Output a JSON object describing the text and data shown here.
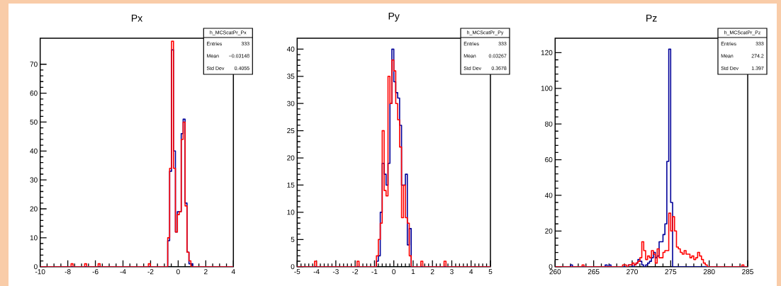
{
  "chart_data": [
    {
      "type": "histogram",
      "title": "Px",
      "xlim": [
        -10,
        4
      ],
      "ylim": [
        0,
        79
      ],
      "xticks": [
        -10,
        -8,
        -6,
        -4,
        -2,
        0,
        2,
        4
      ],
      "yticks": [
        0,
        10,
        20,
        30,
        40,
        50,
        60,
        70
      ],
      "bins": [
        -10,
        -7.76,
        -7.62,
        -6.78,
        -6.64,
        -5.8,
        -5.66,
        -2.16,
        -2.02,
        -0.76,
        -0.62,
        -0.48,
        -0.34,
        -0.2,
        -0.06,
        0.08,
        0.22,
        0.36,
        0.5,
        0.64,
        0.78,
        0.92,
        1.06,
        4
      ],
      "series": [
        {
          "color": "#000099",
          "values": [
            0,
            0,
            0,
            0,
            0,
            0,
            0,
            0,
            0,
            9,
            33,
            75,
            40,
            12,
            19,
            19,
            46,
            51,
            22,
            5,
            1,
            1,
            0
          ]
        },
        {
          "color": "#ff0000",
          "values": [
            0,
            1,
            0,
            1,
            0,
            1,
            0,
            1,
            0,
            10,
            34,
            78,
            34,
            12,
            18,
            19,
            44,
            50,
            21,
            5,
            2,
            0,
            0
          ]
        }
      ],
      "annotations": [
        "h_MCScatPr_Px",
        "Entries",
        "333",
        "Mean",
        "−0.03148",
        "Std Dev",
        "0.4055"
      ]
    },
    {
      "type": "histogram",
      "title": "Py",
      "xlim": [
        -5,
        5
      ],
      "ylim": [
        0,
        42
      ],
      "xticks": [
        -5,
        -4,
        -3,
        -2,
        -1,
        0,
        1,
        2,
        3,
        4,
        5
      ],
      "yticks": [
        0,
        5,
        10,
        15,
        20,
        25,
        30,
        35,
        40
      ],
      "bins": [
        -5,
        -4.1,
        -4,
        -1.9,
        -1.8,
        -0.9,
        -0.8,
        -0.7,
        -0.6,
        -0.5,
        -0.4,
        -0.3,
        -0.2,
        -0.1,
        0,
        0.1,
        0.2,
        0.3,
        0.4,
        0.5,
        0.6,
        0.7,
        0.8,
        0.9,
        1.4,
        1.5,
        2.6,
        2.7,
        5
      ],
      "series": [
        {
          "color": "#000099",
          "values": [
            0,
            0,
            0,
            0,
            0,
            1,
            2,
            10,
            19,
            17,
            15,
            19,
            30,
            40,
            34,
            32,
            31,
            26,
            15,
            15,
            17,
            4,
            7,
            0,
            0,
            0,
            0,
            0
          ]
        },
        {
          "color": "#ff0000",
          "values": [
            0,
            1,
            0,
            1,
            0,
            2,
            5,
            8,
            25,
            14,
            13,
            35,
            30,
            38,
            36,
            30,
            27,
            22,
            9,
            15,
            9,
            8,
            2,
            0,
            1,
            0,
            1,
            0
          ]
        }
      ],
      "annotations": [
        "h_MCScatPr_Py",
        "Entries",
        "333",
        "Mean",
        "0.03267",
        "Std Dev",
        "0.3678"
      ]
    },
    {
      "type": "histogram",
      "title": "Pz",
      "xlim": [
        260,
        285
      ],
      "ylim": [
        0,
        128.1
      ],
      "xticks": [
        260,
        265,
        270,
        275,
        280,
        285
      ],
      "yticks": [
        0,
        20,
        40,
        60,
        80,
        100,
        120
      ],
      "bins": [
        260,
        262,
        262.25,
        263.5,
        263.75,
        266.5,
        266.75,
        267,
        267.25,
        268.75,
        269,
        269.25,
        269.5,
        269.75,
        270,
        270.25,
        270.5,
        270.75,
        271,
        271.25,
        271.5,
        271.75,
        272,
        272.25,
        272.5,
        272.75,
        273,
        273.25,
        273.5,
        273.75,
        274,
        274.25,
        274.5,
        274.75,
        275,
        275.25,
        275.5,
        275.75,
        276,
        276.25,
        276.5,
        276.75,
        277,
        277.25,
        277.5,
        277.75,
        278,
        278.25,
        278.5,
        278.75,
        279,
        279.25,
        279.5,
        279.75,
        280,
        284.25,
        284.5,
        285
      ],
      "series": [
        {
          "color": "#000099",
          "values": [
            0,
            1,
            0,
            0,
            0,
            1,
            0,
            1,
            0,
            0,
            0,
            0,
            1,
            1,
            0,
            1,
            2,
            4,
            3,
            1,
            0,
            1,
            2,
            3,
            5,
            8,
            5,
            6,
            14,
            14,
            18,
            24,
            59,
            122,
            36,
            0,
            0,
            0,
            0,
            0,
            0,
            0,
            0,
            0,
            0,
            0,
            0,
            0,
            0,
            0,
            0,
            0,
            0,
            0,
            0,
            0,
            0
          ]
        },
        {
          "color": "#ff0000",
          "values": [
            0,
            0,
            0,
            1,
            0,
            0,
            0,
            0,
            0,
            1,
            1,
            0,
            1,
            1,
            2,
            1,
            2,
            3,
            5,
            14,
            9,
            4,
            6,
            5,
            9,
            7,
            2,
            10,
            5,
            5,
            8,
            9,
            9,
            30,
            20,
            28,
            20,
            11,
            10,
            8,
            7,
            9,
            7,
            7,
            5,
            6,
            4,
            5,
            8,
            6,
            4,
            2,
            1,
            0,
            0,
            1,
            0
          ]
        }
      ],
      "annotations": [
        "h_MCScatPr_Pz",
        "Entries",
        "333",
        "Mean",
        "274.2",
        "Std Dev",
        "1.397"
      ]
    }
  ]
}
